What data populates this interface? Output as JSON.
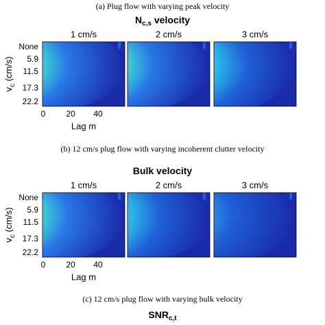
{
  "sections": [
    {
      "caption": "(a) Plug flow with varying peak velocity",
      "title": {
        "main": "N",
        "sub": "c,s",
        "rest": " velocity"
      },
      "panels": [
        "1 cm/s",
        "2 cm/s",
        "3 cm/s"
      ],
      "y_label": {
        "main": "v",
        "sub": "c",
        "rest": " (cm/s)"
      },
      "y_ticks": [
        "None",
        "5.9",
        "11.5",
        "17.3",
        "22.2"
      ],
      "x_ticks": [
        "0",
        "20",
        "40"
      ],
      "x_label": "Lag m"
    },
    {
      "caption": "(b) 12 cm/s plug flow with varying incoherent clutter velocity",
      "title": {
        "main": "Bulk velocity"
      },
      "panels": [
        "1 cm/s",
        "2 cm/s",
        "3 cm/s"
      ],
      "y_label": {
        "main": "v",
        "sub": "c",
        "rest": " (cm/s)"
      },
      "y_ticks": [
        "None",
        "5.9",
        "11.5",
        "17.3",
        "22.2"
      ],
      "x_ticks": [
        "0",
        "20",
        "40"
      ],
      "x_label": "Lag m"
    },
    {
      "caption": "(c) 12 cm/s plug flow with varying bulk velocity",
      "title": {
        "main": "SNR",
        "sub": "c,t"
      }
    }
  ]
}
